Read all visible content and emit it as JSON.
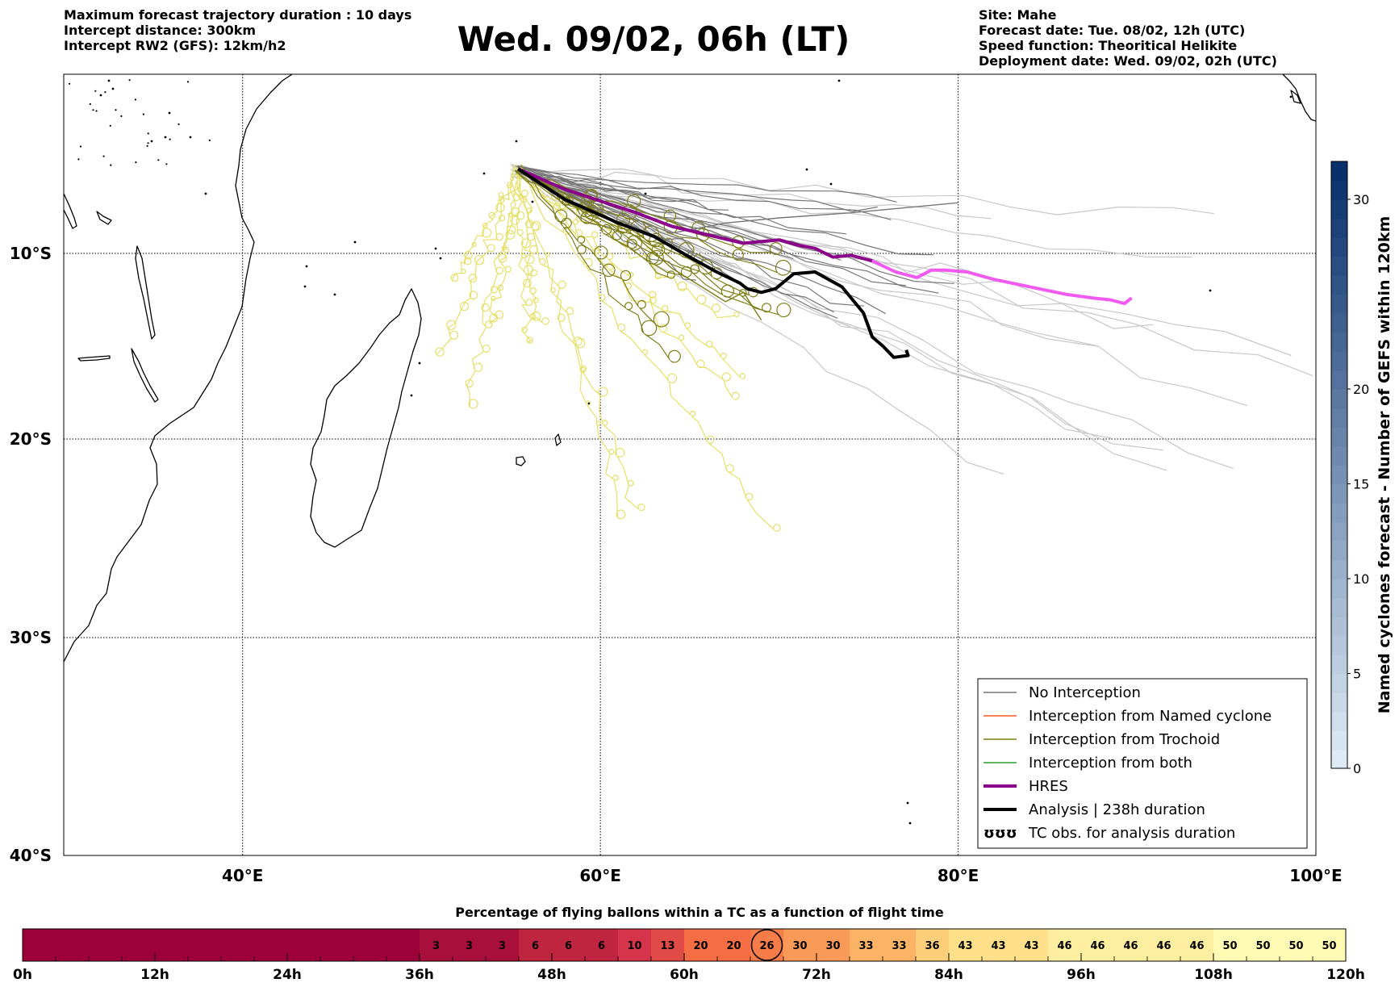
{
  "header": {
    "left_lines": [
      "Maximum forecast trajectory duration : 10 days",
      "Intercept distance: 300km",
      "Intercept RW2 (GFS):  12km/h2"
    ],
    "title": "Wed. 09/02, 06h (LT)",
    "right_lines": [
      "Site: Mahe",
      "Forecast date: Tue. 08/02, 12h (UTC)",
      "Speed function: Theoritical Helikite",
      "Deployment date: Wed. 09/02, 02h (UTC)"
    ]
  },
  "colors": {
    "no_interception": "#777777",
    "faint_track": "#c8c8c8",
    "named_cyclone": "#ff5a1e",
    "trochoid": "#7f7f19",
    "trochoid_light": "#e6e06a",
    "both": "#2ca02c",
    "hres": "#8b008b",
    "hres_light": "#f05af0",
    "analysis": "#000000",
    "coast": "#000000"
  },
  "chart_data": [
    {
      "type": "line",
      "title": "Wed. 09/02, 06h (LT)",
      "xlabel": "",
      "ylabel": "",
      "projection": "map (longitude / latitude)",
      "xlim": [
        30,
        100
      ],
      "ylim": [
        -40,
        0
      ],
      "grid": true,
      "x_ticks": [
        40,
        60,
        80,
        100
      ],
      "x_tick_labels": [
        "40°E",
        "60°E",
        "80°E",
        "100°E"
      ],
      "y_ticks": [
        -10,
        -20,
        -30,
        -40
      ],
      "y_tick_labels": [
        "10°S",
        "20°S",
        "30°S",
        "40°S"
      ],
      "legend_position": "bottom-right",
      "legend": [
        {
          "label": "No Interception",
          "color": "#777777",
          "style": "thin"
        },
        {
          "label": "Interception from Named cyclone",
          "color": "#ff5a1e",
          "style": "thin"
        },
        {
          "label": "Interception from Trochoid",
          "color": "#7f7f19",
          "style": "thin"
        },
        {
          "label": "Interception from both",
          "color": "#2ca02c",
          "style": "thin"
        },
        {
          "label": "HRES",
          "color": "#8b008b",
          "style": "thick"
        },
        {
          "label": "Analysis | 238h duration",
          "color": "#000000",
          "style": "thick"
        },
        {
          "label": "TC obs. for analysis duration",
          "color": "#000000",
          "style": "symbol",
          "symbol": "ʊʊʊ"
        }
      ],
      "series": [
        {
          "name": "HRES",
          "color": "#8b008b",
          "x": [
            55.4,
            58,
            60,
            62,
            64,
            66,
            68,
            70,
            71,
            72,
            73,
            74,
            75.2
          ],
          "y": [
            -5.0,
            -6.2,
            -6.9,
            -7.6,
            -8.4,
            -8.9,
            -9.4,
            -9.2,
            -9.5,
            -9.7,
            -10.2,
            -10.1,
            -10.4
          ]
        },
        {
          "name": "HRES (later)",
          "color": "#f05af0",
          "x": [
            75.2,
            76.5,
            77.7,
            78.5,
            79.3,
            80.5,
            82,
            84,
            86,
            87.5,
            88.5,
            89.3,
            89.7
          ],
          "y": [
            -10.4,
            -11.0,
            -11.3,
            -10.9,
            -10.9,
            -11.0,
            -11.4,
            -11.8,
            -12.2,
            -12.4,
            -12.5,
            -12.7,
            -12.4
          ]
        },
        {
          "name": "Analysis | 238h duration",
          "color": "#000000",
          "x": [
            55.4,
            58,
            61,
            63,
            65,
            66.5,
            67.8,
            68.2,
            69,
            69.8,
            70.3,
            70.8,
            72,
            73.5,
            74.7,
            75.2,
            75.8,
            76.4,
            77.2,
            77.1
          ],
          "y": [
            -5.0,
            -6.8,
            -8.2,
            -9.0,
            -10.2,
            -11.0,
            -11.6,
            -11.9,
            -12.1,
            -11.9,
            -11.5,
            -11.1,
            -11.0,
            -11.8,
            -13.2,
            -14.5,
            -15.0,
            -15.6,
            -15.5,
            -15.2
          ]
        },
        {
          "name": "no_interception_sample",
          "color": "#777777",
          "x": [
            55.4,
            58,
            61,
            64,
            67,
            70,
            74,
            78,
            80
          ],
          "y": [
            -5.0,
            -6.3,
            -7.6,
            -8.8,
            -8.2,
            -7.9,
            -7.6,
            -7.2,
            -7.0
          ]
        },
        {
          "name": "no_interception_sample_2",
          "color": "#777777",
          "x": [
            55.4,
            58,
            61,
            64,
            66,
            67.5
          ],
          "y": [
            -5.0,
            -6.4,
            -8.0,
            -9.4,
            -10.5,
            -11.4
          ]
        },
        {
          "name": "trochoid_sample",
          "color": "#7f7f19",
          "x": [
            55.4,
            59,
            62,
            64,
            66,
            67,
            68,
            69
          ],
          "y": [
            -5.0,
            -7.0,
            -9.0,
            -10.8,
            -12.0,
            -12.6,
            -12.1,
            -13.6
          ]
        }
      ],
      "colorbar": {
        "label": "Named cyclones forecast - Number of GEFS within 120km",
        "ticks": [
          0,
          5,
          10,
          15,
          20,
          30
        ],
        "range": [
          0,
          32
        ],
        "colormap": "Blues"
      }
    },
    {
      "type": "heatmap",
      "title": "Percentage of flying ballons within a TC as a function of flight time",
      "x_tick_labels": [
        "0h",
        "12h",
        "24h",
        "36h",
        "48h",
        "60h",
        "72h",
        "84h",
        "96h",
        "108h",
        "120h"
      ],
      "bin_hours": 3,
      "values": [
        0,
        0,
        0,
        0,
        0,
        0,
        0,
        0,
        0,
        0,
        0,
        0,
        3,
        3,
        3,
        6,
        6,
        6,
        10,
        13,
        20,
        20,
        26,
        30,
        30,
        33,
        33,
        36,
        43,
        43,
        43,
        46,
        46,
        46,
        46,
        46,
        50,
        50,
        50,
        50
      ],
      "highlighted_value": 26
    }
  ]
}
